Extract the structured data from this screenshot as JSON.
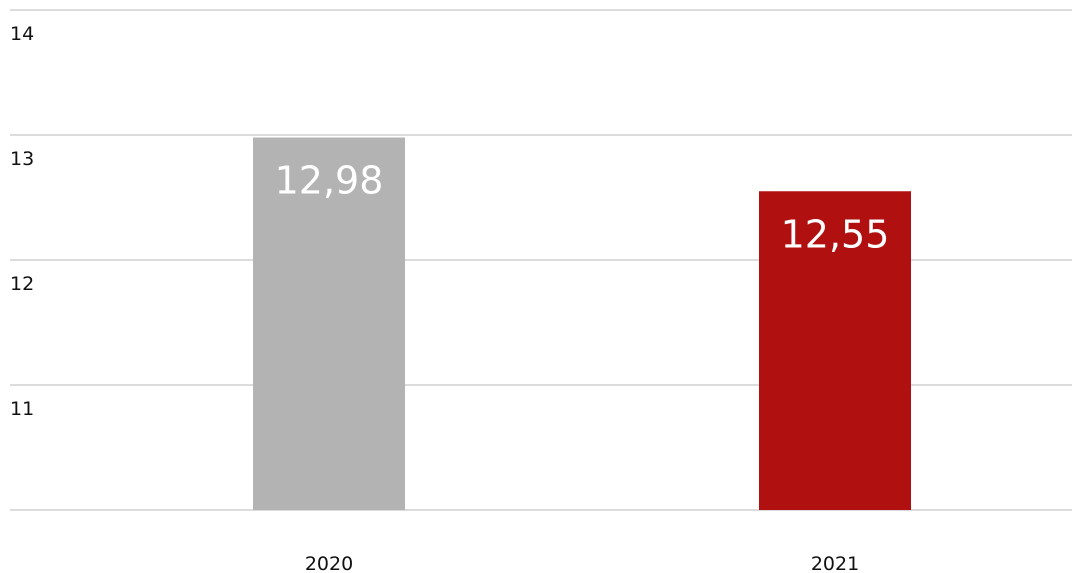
{
  "chart_data": {
    "type": "bar",
    "categories": [
      "2020",
      "2021"
    ],
    "values": [
      12.98,
      12.55
    ],
    "value_labels": [
      "12,98",
      "12,55"
    ],
    "bar_colors": [
      "#b3b3b3",
      "#b01010"
    ],
    "yticks": [
      "11",
      "12",
      "13",
      "14"
    ],
    "ylim": [
      10,
      14
    ],
    "grid": true,
    "gridline_color": "#c8c8c8",
    "title": "",
    "xlabel": "",
    "ylabel": ""
  }
}
